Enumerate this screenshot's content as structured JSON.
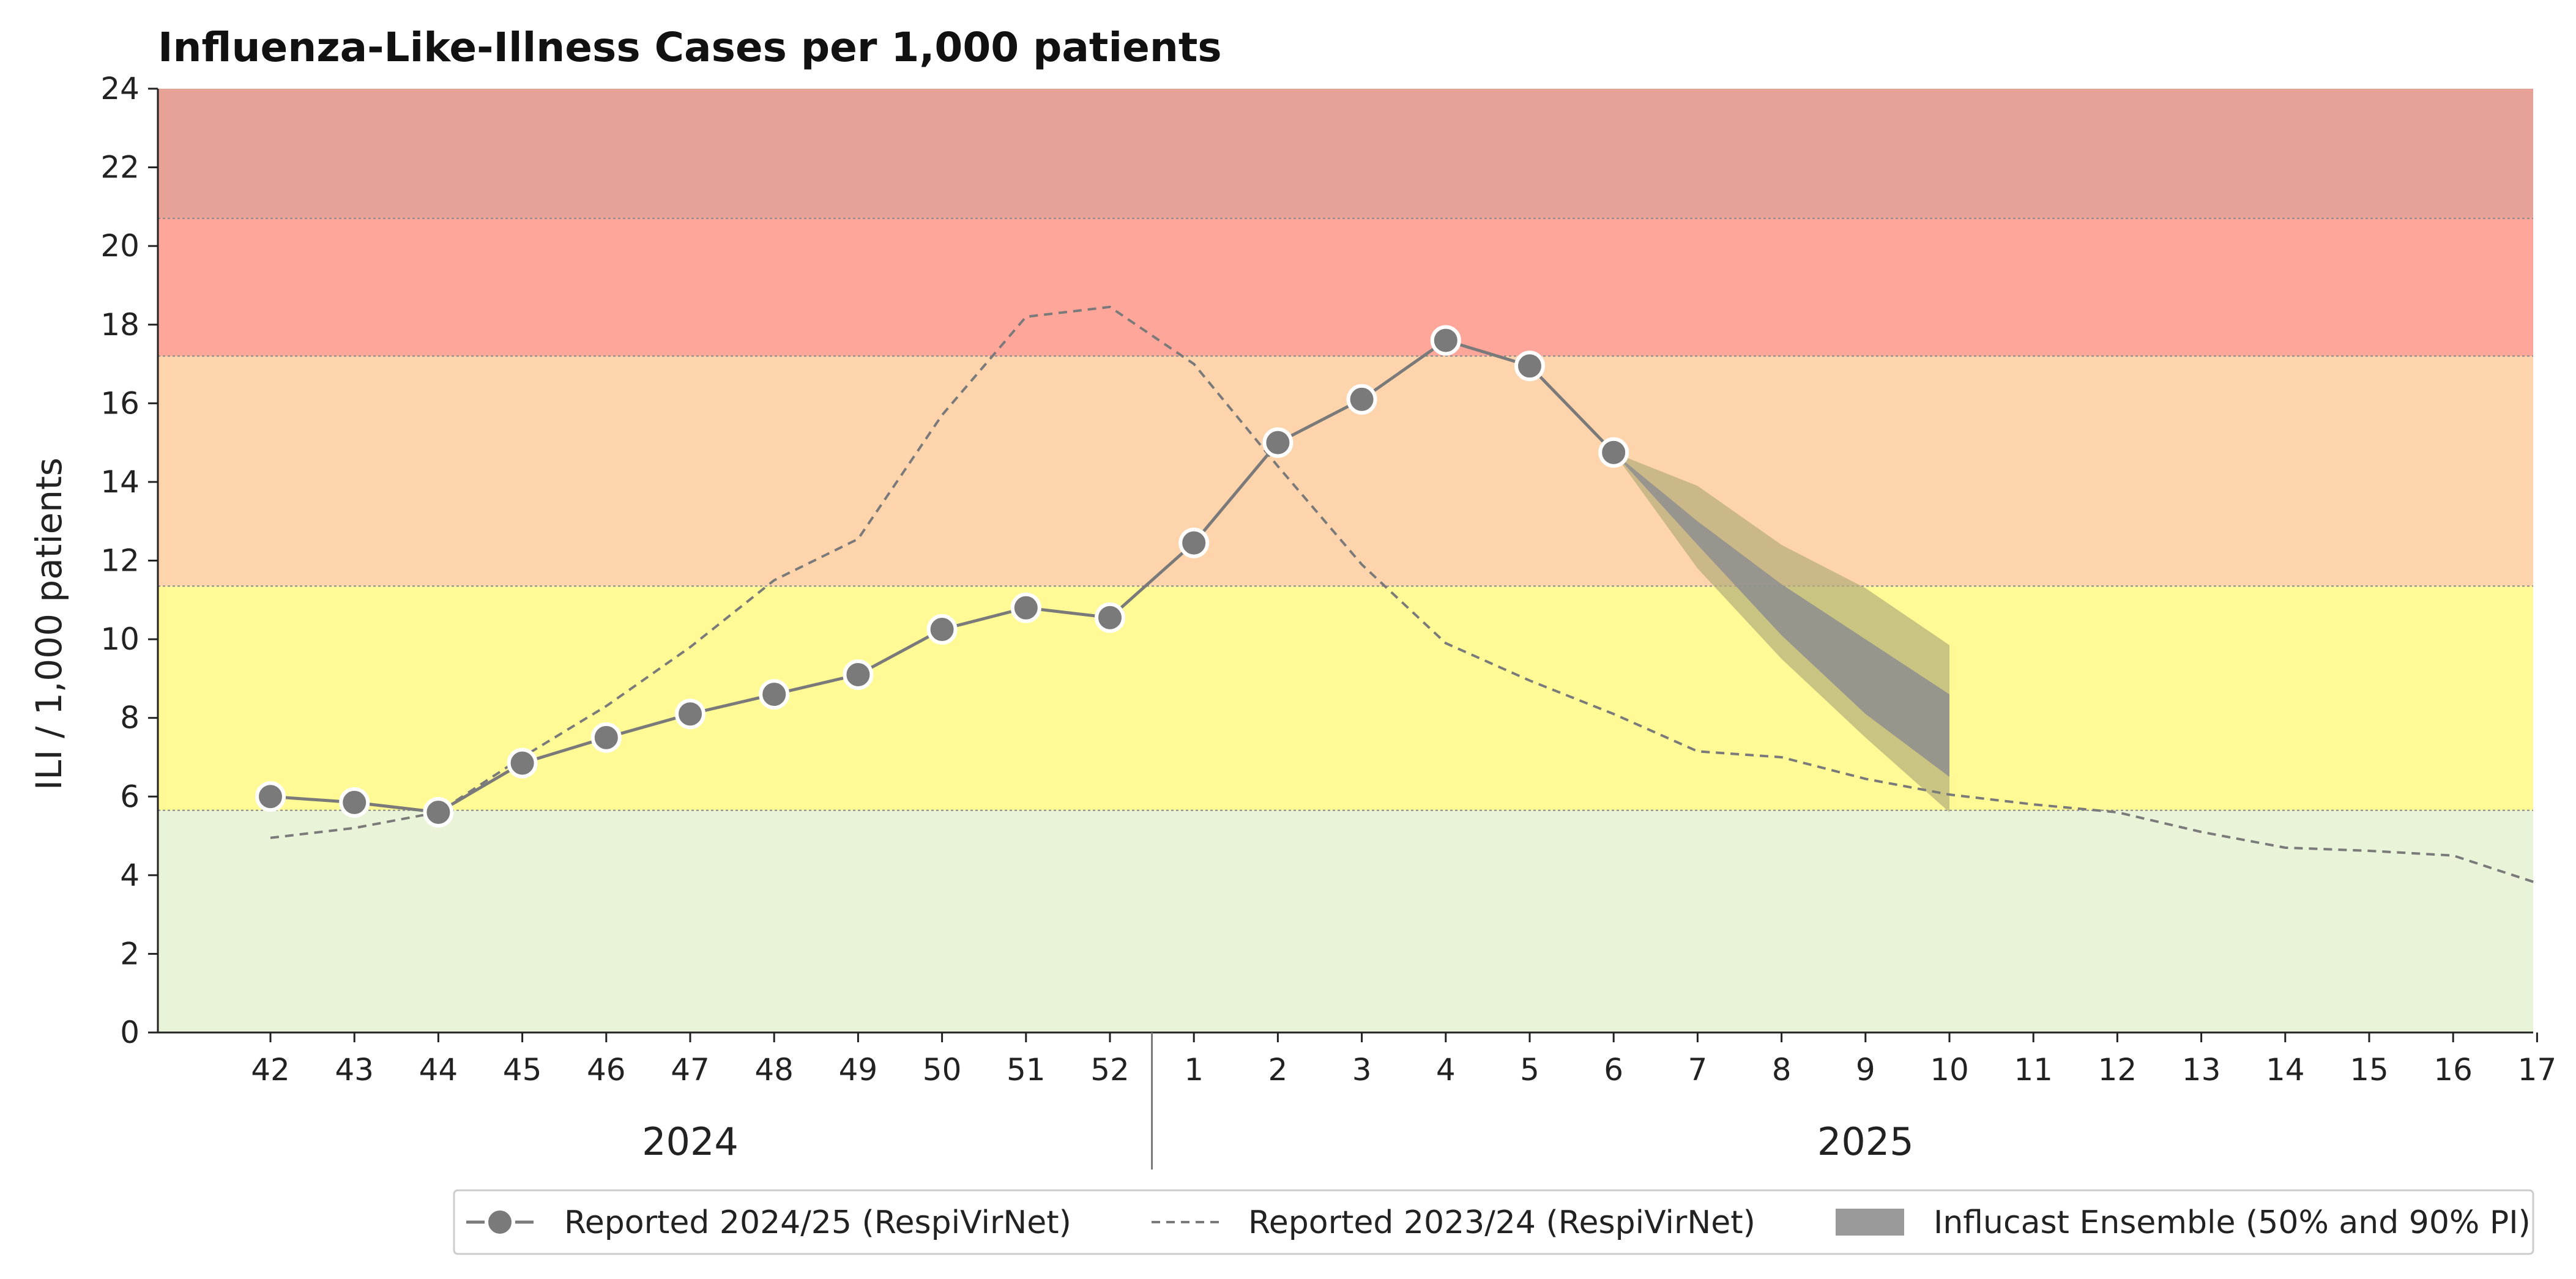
{
  "chart_data": {
    "type": "line",
    "title": "Influenza-Like-Illness Cases per 1,000 patients",
    "ylabel": "ILI / 1,000 patients",
    "ylim": [
      0,
      24
    ],
    "yticks": [
      0,
      2,
      4,
      6,
      8,
      10,
      12,
      14,
      16,
      18,
      20,
      22,
      24
    ],
    "x_categories": [
      "42",
      "43",
      "44",
      "45",
      "46",
      "47",
      "48",
      "49",
      "50",
      "51",
      "52",
      "1",
      "2",
      "3",
      "4",
      "5",
      "6",
      "7",
      "8",
      "9",
      "10",
      "11",
      "12",
      "13",
      "14",
      "15",
      "16",
      "17"
    ],
    "year_groups": [
      {
        "label": "2024",
        "from": "42",
        "to": "52"
      },
      {
        "label": "2025",
        "from": "1",
        "to": "17"
      }
    ],
    "threshold_bands": [
      {
        "from": 0,
        "to": 5.65,
        "color": "#e8f3d8"
      },
      {
        "from": 5.65,
        "to": 11.35,
        "color": "#fffa96"
      },
      {
        "from": 11.35,
        "to": 17.2,
        "color": "#fdd4ab"
      },
      {
        "from": 17.2,
        "to": 20.7,
        "color": "#ffa69a"
      },
      {
        "from": 20.7,
        "to": 24,
        "color": "#e6a297"
      }
    ],
    "series": [
      {
        "name": "Reported 2024/25 (RespiVirNet)",
        "style": "solid-markers",
        "color": "#7a7a7a",
        "x": [
          "42",
          "43",
          "44",
          "45",
          "46",
          "47",
          "48",
          "49",
          "50",
          "51",
          "52",
          "1",
          "2",
          "3",
          "4",
          "5",
          "6"
        ],
        "values": [
          6.0,
          5.85,
          5.6,
          6.85,
          7.5,
          8.1,
          8.6,
          9.1,
          10.25,
          10.8,
          10.55,
          12.45,
          15.0,
          16.1,
          17.6,
          16.95,
          14.75
        ]
      },
      {
        "name": "Reported 2023/24 (RespiVirNet)",
        "style": "dashed",
        "color": "#7a7a7a",
        "x": [
          "42",
          "43",
          "44",
          "45",
          "46",
          "47",
          "48",
          "49",
          "50",
          "51",
          "52",
          "1",
          "2",
          "3",
          "4",
          "5",
          "6",
          "7",
          "8",
          "9",
          "10",
          "11",
          "12",
          "13",
          "14",
          "15",
          "16",
          "17"
        ],
        "values": [
          4.95,
          5.2,
          5.6,
          7.0,
          8.3,
          9.8,
          11.5,
          12.55,
          15.7,
          18.2,
          18.45,
          17.0,
          14.4,
          11.9,
          9.9,
          8.95,
          8.1,
          7.15,
          7.0,
          6.45,
          6.05,
          5.8,
          5.6,
          5.1,
          4.7,
          4.62,
          4.5,
          3.8
        ]
      }
    ],
    "forecast": {
      "name": "Influcast Ensemble (50% and 90% PI)",
      "color_inner": "#8e8e8e",
      "color_outer": "#b3ac7a",
      "x": [
        "6",
        "7",
        "8",
        "9",
        "10"
      ],
      "lower90": [
        14.75,
        11.8,
        9.5,
        7.5,
        5.6
      ],
      "lower50": [
        14.75,
        12.4,
        10.1,
        8.1,
        6.5
      ],
      "upper50": [
        14.75,
        13.0,
        11.4,
        10.0,
        8.6
      ],
      "upper90": [
        14.75,
        13.9,
        12.4,
        11.3,
        9.85
      ]
    },
    "legend": {
      "placement": "bottom-right",
      "entries": [
        "Reported 2024/25 (RespiVirNet)",
        "Reported 2023/24 (RespiVirNet)",
        "Influcast Ensemble (50% and 90% PI)"
      ]
    },
    "grid": false
  }
}
